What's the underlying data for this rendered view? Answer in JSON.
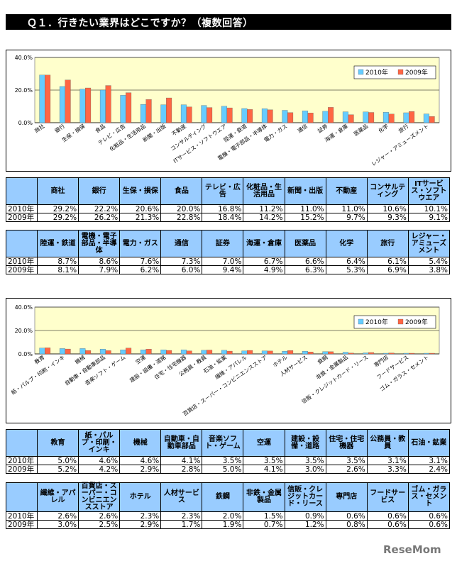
{
  "title": "Ｑ１．行きたい業界はどこですか？（複数回答）",
  "watermark": "ReseMom",
  "colors": {
    "s2010": "#66ccff",
    "s2009": "#ff6644",
    "plot_bg": "#ffffcc"
  },
  "chart_data": [
    {
      "type": "bar",
      "categories": [
        "商社",
        "銀行",
        "生保・損保",
        "食品",
        "テレビ・広告",
        "化粧品・生活用品",
        "新聞・出版",
        "不動産",
        "コンサルティング",
        "ITサービス・ソフトウエア",
        "陸運・鉄道",
        "電機・電子部品・半導体",
        "電力・ガス",
        "通信",
        "証券",
        "海運・倉庫",
        "医薬品",
        "化学",
        "旅行",
        "レジャー・アミューズメント"
      ],
      "series": [
        {
          "name": "2010年",
          "values": [
            29.2,
            22.2,
            20.6,
            20.0,
            16.8,
            11.2,
            11.0,
            11.0,
            10.6,
            10.1,
            8.7,
            8.6,
            7.6,
            7.3,
            7.0,
            6.7,
            6.6,
            6.4,
            6.1,
            5.4
          ]
        },
        {
          "name": "2009年",
          "values": [
            29.2,
            26.2,
            21.3,
            22.8,
            18.4,
            14.2,
            15.2,
            9.7,
            9.3,
            9.1,
            8.1,
            7.9,
            6.2,
            6.0,
            9.4,
            4.9,
            6.3,
            5.3,
            6.9,
            3.8
          ]
        }
      ],
      "yticks": [
        "0.0%",
        "20.0%",
        "40.0%"
      ],
      "ylim": [
        0,
        40
      ],
      "legend": "top-right"
    },
    {
      "type": "bar",
      "categories": [
        "教育",
        "紙・パルプ・印刷・インキ",
        "機械",
        "自動車・自動車部品",
        "音楽ソフト・ゲーム",
        "空運",
        "建設・設備・道路",
        "住宅・住宅機器",
        "公務員・教員",
        "石油・鉱業",
        "繊維・アパレル",
        "百貨店・スーパー・コンビニエンスストア",
        "ホテル",
        "人材サービス",
        "鉄鋼",
        "非鉄・金属製品",
        "信販・クレジットカード・リース",
        "専門店",
        "フードサービス",
        "ゴム・ガラス・セメント"
      ],
      "series": [
        {
          "name": "2010年",
          "values": [
            5.0,
            4.6,
            4.6,
            4.1,
            3.5,
            3.5,
            3.5,
            3.5,
            3.1,
            3.1,
            2.6,
            2.6,
            2.3,
            2.3,
            2.0,
            1.5,
            0.9,
            0.6,
            0.6,
            0.6
          ]
        },
        {
          "name": "2009年",
          "values": [
            5.2,
            4.2,
            2.9,
            2.8,
            5.0,
            4.1,
            3.0,
            2.6,
            3.3,
            2.4,
            3.0,
            2.5,
            2.9,
            1.7,
            1.9,
            0.7,
            1.2,
            0.8,
            0.6,
            0.6
          ]
        }
      ],
      "yticks": [
        "0.0%",
        "20.0%",
        "40.0%"
      ],
      "ylim": [
        0,
        40
      ],
      "legend": "top-right"
    }
  ],
  "tables": [
    {
      "headers": [
        "商社",
        "銀行",
        "生保・損保",
        "食品",
        "テレビ・広告",
        "化粧品・生活用品",
        "新聞・出版",
        "不動産",
        "コンサルティング",
        "ITサービス・ソフトウエア"
      ],
      "rows": [
        {
          "label": "2010年",
          "values": [
            "29.2%",
            "22.2%",
            "20.6%",
            "20.0%",
            "16.8%",
            "11.2%",
            "11.0%",
            "11.0%",
            "10.6%",
            "10.1%"
          ]
        },
        {
          "label": "2009年",
          "values": [
            "29.2%",
            "26.2%",
            "21.3%",
            "22.8%",
            "18.4%",
            "14.2%",
            "15.2%",
            "9.7%",
            "9.3%",
            "9.1%"
          ]
        }
      ]
    },
    {
      "headers": [
        "陸運・鉄道",
        "電機・電子部品・半導体",
        "電力・ガス",
        "通信",
        "証券",
        "海運・倉庫",
        "医薬品",
        "化学",
        "旅行",
        "レジャー・アミューズメント"
      ],
      "rows": [
        {
          "label": "2010年",
          "values": [
            "8.7%",
            "8.6%",
            "7.6%",
            "7.3%",
            "7.0%",
            "6.7%",
            "6.6%",
            "6.4%",
            "6.1%",
            "5.4%"
          ]
        },
        {
          "label": "2009年",
          "values": [
            "8.1%",
            "7.9%",
            "6.2%",
            "6.0%",
            "9.4%",
            "4.9%",
            "6.3%",
            "5.3%",
            "6.9%",
            "3.8%"
          ]
        }
      ]
    },
    {
      "headers": [
        "教育",
        "紙・パルプ・印刷・インキ",
        "機械",
        "自動車・自動車部品",
        "音楽ソフト・ゲーム",
        "空運",
        "建設・設備・道路",
        "住宅・住宅機器",
        "公務員・教員",
        "石油・鉱業"
      ],
      "rows": [
        {
          "label": "2010年",
          "values": [
            "5.0%",
            "4.6%",
            "4.6%",
            "4.1%",
            "3.5%",
            "3.5%",
            "3.5%",
            "3.5%",
            "3.1%",
            "3.1%"
          ]
        },
        {
          "label": "2009年",
          "values": [
            "5.2%",
            "4.2%",
            "2.9%",
            "2.8%",
            "5.0%",
            "4.1%",
            "3.0%",
            "2.6%",
            "3.3%",
            "2.4%"
          ]
        }
      ]
    },
    {
      "headers": [
        "繊維・アパレル",
        "百貨店・スーパー・コンビニエンスストア",
        "ホテル",
        "人材サービス",
        "鉄鋼",
        "非鉄・金属製品",
        "信販・クレジットカード・リース",
        "専門店",
        "フードサービス",
        "ゴム・ガラス・セメント"
      ],
      "rows": [
        {
          "label": "2010年",
          "values": [
            "2.6%",
            "2.6%",
            "2.3%",
            "2.3%",
            "2.0%",
            "1.5%",
            "0.9%",
            "0.6%",
            "0.6%",
            "0.6%"
          ]
        },
        {
          "label": "2009年",
          "values": [
            "3.0%",
            "2.5%",
            "2.9%",
            "1.7%",
            "1.9%",
            "0.7%",
            "1.2%",
            "0.8%",
            "0.6%",
            "0.6%"
          ]
        }
      ]
    }
  ]
}
